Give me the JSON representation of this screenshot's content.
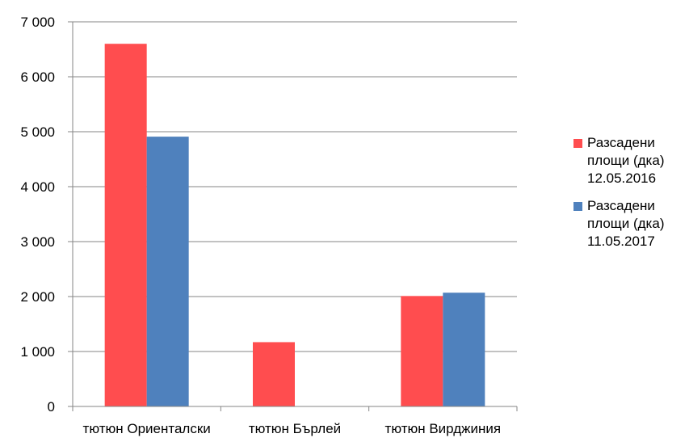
{
  "chart_data": {
    "type": "bar",
    "categories": [
      "тютюн Ориенталски",
      "тютюн Бърлей",
      "тютюн Вирджиния"
    ],
    "series": [
      {
        "name": "Разсадени площи (дка) 12.05.2016",
        "values": [
          6600,
          1170,
          2010
        ],
        "color": "#ff4d4f"
      },
      {
        "name": "Разсадени площи (дка) 11.05.2017",
        "values": [
          4910,
          0,
          2070
        ],
        "color": "#4f81bd"
      }
    ],
    "ylim": [
      0,
      7000
    ],
    "yticks": [
      "0",
      "1 000",
      "2 000",
      "3 000",
      "4 000",
      "5 000",
      "6 000",
      "7 000"
    ],
    "grid": true,
    "legend_position": "right"
  }
}
